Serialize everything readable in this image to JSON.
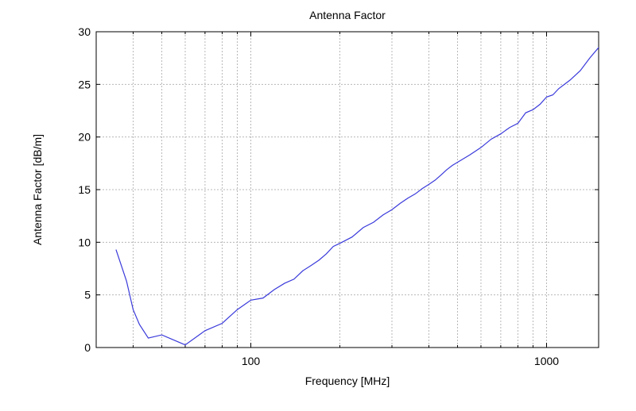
{
  "chart_data": {
    "type": "line",
    "title": "Antenna Factor",
    "xlabel": "Frequency [MHz]",
    "ylabel": "Antenna Factor [dB/m]",
    "xscale": "log",
    "xlim": [
      30,
      1500
    ],
    "ylim": [
      0,
      30
    ],
    "grid": true,
    "x_tick_labels": [
      "100",
      "1000"
    ],
    "y_tick_labels": [
      "0",
      "5",
      "10",
      "15",
      "20",
      "25",
      "30"
    ],
    "series": [
      {
        "color": "#3a3adb",
        "points": [
          [
            35,
            9.3
          ],
          [
            38,
            6.3
          ],
          [
            40,
            3.6
          ],
          [
            42,
            2.2
          ],
          [
            45,
            0.9
          ],
          [
            50,
            1.2
          ],
          [
            55,
            0.7
          ],
          [
            60,
            0.25
          ],
          [
            70,
            1.6
          ],
          [
            80,
            2.3
          ],
          [
            90,
            3.6
          ],
          [
            100,
            4.5
          ],
          [
            110,
            4.7
          ],
          [
            120,
            5.5
          ],
          [
            130,
            6.1
          ],
          [
            140,
            6.5
          ],
          [
            150,
            7.3
          ],
          [
            160,
            7.8
          ],
          [
            170,
            8.3
          ],
          [
            180,
            8.9
          ],
          [
            190,
            9.6
          ],
          [
            200,
            9.9
          ],
          [
            220,
            10.5
          ],
          [
            240,
            11.4
          ],
          [
            260,
            11.9
          ],
          [
            280,
            12.6
          ],
          [
            300,
            13.1
          ],
          [
            320,
            13.7
          ],
          [
            340,
            14.2
          ],
          [
            360,
            14.6
          ],
          [
            380,
            15.1
          ],
          [
            400,
            15.5
          ],
          [
            420,
            15.9
          ],
          [
            440,
            16.4
          ],
          [
            460,
            16.9
          ],
          [
            480,
            17.3
          ],
          [
            500,
            17.6
          ],
          [
            550,
            18.3
          ],
          [
            600,
            19.0
          ],
          [
            650,
            19.8
          ],
          [
            700,
            20.3
          ],
          [
            750,
            20.9
          ],
          [
            800,
            21.3
          ],
          [
            850,
            22.3
          ],
          [
            900,
            22.6
          ],
          [
            950,
            23.1
          ],
          [
            1000,
            23.8
          ],
          [
            1050,
            24.0
          ],
          [
            1100,
            24.6
          ],
          [
            1200,
            25.4
          ],
          [
            1300,
            26.3
          ],
          [
            1400,
            27.5
          ],
          [
            1500,
            28.5
          ],
          [
            1600,
            28.8
          ]
        ]
      }
    ]
  }
}
